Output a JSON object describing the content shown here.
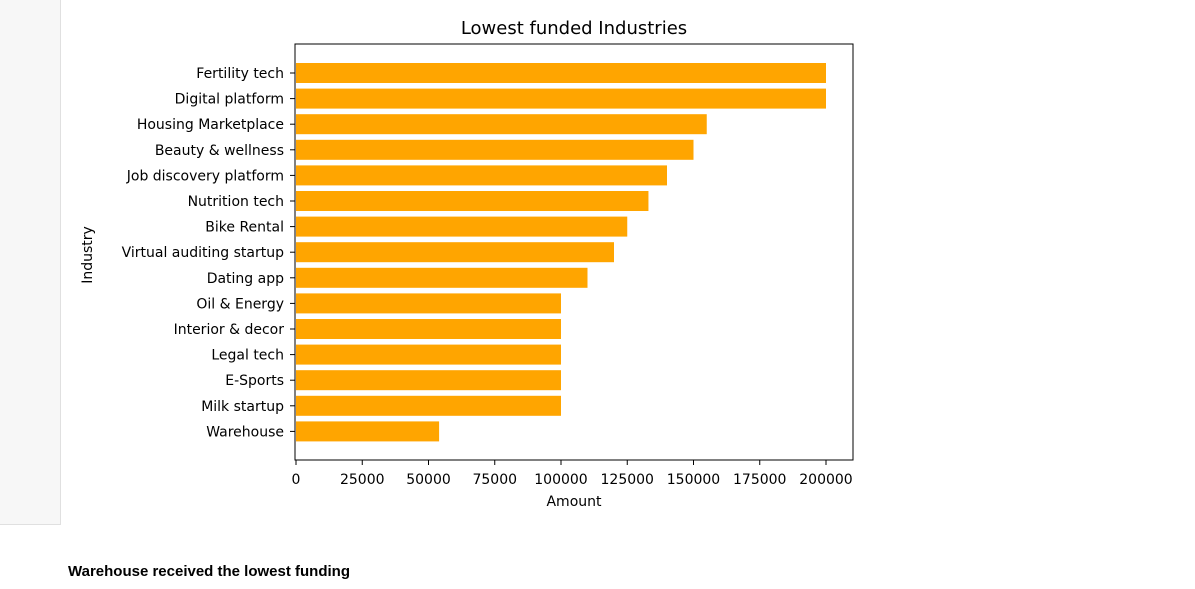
{
  "chart_data": {
    "type": "bar",
    "orientation": "horizontal",
    "title": "Lowest funded Industries",
    "xlabel": "Amount",
    "ylabel": "Industry",
    "categories": [
      "Fertility tech",
      "Digital platform",
      "Housing Marketplace",
      "Beauty & wellness",
      "Job discovery platform",
      "Nutrition tech",
      "Bike Rental",
      "Virtual auditing startup",
      "Dating app",
      "Oil & Energy",
      "Interior & decor",
      "Legal tech",
      "E-Sports",
      "Milk startup",
      "Warehouse"
    ],
    "values": [
      200000,
      200000,
      155000,
      150000,
      140000,
      133000,
      125000,
      120000,
      110000,
      100000,
      100000,
      100000,
      100000,
      100000,
      54000
    ],
    "xlim": [
      0,
      210000
    ],
    "xticks": [
      0,
      25000,
      50000,
      75000,
      100000,
      125000,
      150000,
      175000,
      200000
    ],
    "xtick_labels": [
      "0",
      "25000",
      "50000",
      "75000",
      "100000",
      "125000",
      "150000",
      "175000",
      "200000"
    ],
    "bar_color": "#ffa500",
    "grid": false,
    "legend": false
  },
  "caption": "Warehouse received the lowest funding"
}
